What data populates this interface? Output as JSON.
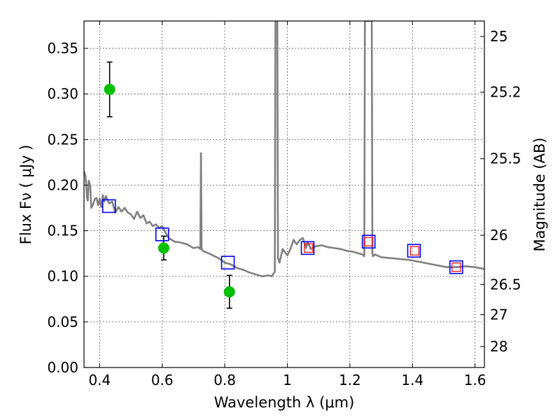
{
  "chart_data": {
    "type": "scatter",
    "xlabel": "Wavelength  λ (μm)",
    "ylabel": "Flux  Fν  ( μJy )",
    "ylabel_right": "Magnitude (AB)",
    "xlim": [
      0.35,
      1.63
    ],
    "ylim": [
      0.0,
      0.38
    ],
    "grid": true,
    "x_ticks": [
      0.4,
      0.6,
      0.8,
      1.0,
      1.2,
      1.4,
      1.6
    ],
    "x_tick_labels": [
      "0.4",
      "0.6",
      "0.8",
      "1",
      "1.2",
      "1.4",
      "1.6"
    ],
    "y_ticks": [
      0.0,
      0.05,
      0.1,
      0.15,
      0.2,
      0.25,
      0.3,
      0.35
    ],
    "y_tick_labels": [
      "0.00",
      "0.05",
      "0.10",
      "0.15",
      "0.20",
      "0.25",
      "0.30",
      "0.35"
    ],
    "right_ticks": [
      {
        "label": "25",
        "flux": 0.363
      },
      {
        "label": "25.2",
        "flux": 0.302
      },
      {
        "label": "25.5",
        "flux": 0.229
      },
      {
        "label": "26",
        "flux": 0.145
      },
      {
        "label": "26.5",
        "flux": 0.091
      },
      {
        "label": "27",
        "flux": 0.058
      },
      {
        "label": "28",
        "flux": 0.023
      }
    ],
    "colors": {
      "spectrum": "#808080",
      "observed": "#00c000",
      "model_blue": "#0000ff",
      "model_red": "#ff0000",
      "errorbar": "#000000"
    },
    "series": [
      {
        "type": "line",
        "x": [
          0.35,
          0.355,
          0.36,
          0.362,
          0.365,
          0.37,
          0.373,
          0.378,
          0.385,
          0.39,
          0.395,
          0.4,
          0.405,
          0.41,
          0.415,
          0.42,
          0.43,
          0.44,
          0.45,
          0.46,
          0.47,
          0.48,
          0.49,
          0.5,
          0.51,
          0.52,
          0.53,
          0.54,
          0.55,
          0.56,
          0.57,
          0.58,
          0.59,
          0.6,
          0.62,
          0.64,
          0.66,
          0.68,
          0.7,
          0.715,
          0.722,
          0.724,
          0.726,
          0.73,
          0.75,
          0.78,
          0.8,
          0.82,
          0.84,
          0.86,
          0.88,
          0.9,
          0.92,
          0.94,
          0.95,
          0.96,
          0.962,
          0.964,
          0.966,
          0.968,
          0.97,
          0.975,
          0.985,
          1.0,
          1.01,
          1.02,
          1.03,
          1.04,
          1.05,
          1.06,
          1.065,
          1.075,
          1.09,
          1.11,
          1.13,
          1.15,
          1.17,
          1.19,
          1.21,
          1.23,
          1.24,
          1.246,
          1.248,
          1.252,
          1.255,
          1.258,
          1.262,
          1.266,
          1.27,
          1.272,
          1.274,
          1.28,
          1.3,
          1.33,
          1.36,
          1.39,
          1.42,
          1.45,
          1.48,
          1.51,
          1.54,
          1.57,
          1.6,
          1.63
        ],
        "y": [
          0.215,
          0.21,
          0.185,
          0.183,
          0.205,
          0.2,
          0.175,
          0.178,
          0.185,
          0.186,
          0.178,
          0.185,
          0.176,
          0.189,
          0.182,
          0.188,
          0.18,
          0.182,
          0.17,
          0.176,
          0.171,
          0.175,
          0.17,
          0.168,
          0.163,
          0.171,
          0.164,
          0.167,
          0.158,
          0.16,
          0.155,
          0.157,
          0.153,
          0.155,
          0.142,
          0.138,
          0.137,
          0.135,
          0.131,
          0.132,
          0.13,
          0.235,
          0.13,
          0.128,
          0.125,
          0.12,
          0.115,
          0.113,
          0.109,
          0.107,
          0.104,
          0.102,
          0.1,
          0.101,
          0.1,
          0.105,
          0.38,
          0.38,
          0.38,
          0.38,
          0.12,
          0.115,
          0.13,
          0.123,
          0.13,
          0.14,
          0.135,
          0.14,
          0.142,
          0.131,
          0.138,
          0.13,
          0.133,
          0.134,
          0.132,
          0.131,
          0.13,
          0.128,
          0.127,
          0.125,
          0.124,
          0.122,
          0.38,
          0.38,
          0.38,
          0.38,
          0.38,
          0.38,
          0.38,
          0.125,
          0.122,
          0.124,
          0.121,
          0.12,
          0.119,
          0.118,
          0.116,
          0.114,
          0.112,
          0.11,
          0.11,
          0.111,
          0.11,
          0.108
        ]
      },
      {
        "type": "observed",
        "x": [
          0.432,
          0.605,
          0.815
        ],
        "y": [
          0.305,
          0.131,
          0.083
        ],
        "yerr": [
          0.03,
          0.013,
          0.018
        ]
      },
      {
        "type": "model_blue",
        "x": [
          0.43,
          0.6,
          0.81,
          1.065,
          1.26,
          1.405,
          1.54
        ],
        "y": [
          0.177,
          0.146,
          0.115,
          0.131,
          0.138,
          0.128,
          0.11
        ]
      },
      {
        "type": "model_red",
        "x": [
          1.068,
          1.26,
          1.407,
          1.54
        ],
        "y": [
          0.131,
          0.138,
          0.128,
          0.11
        ]
      }
    ]
  }
}
